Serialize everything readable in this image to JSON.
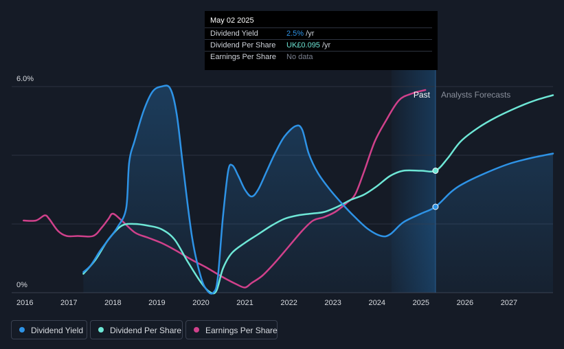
{
  "tooltip": {
    "date": "May 02 2025",
    "rows": [
      {
        "label": "Dividend Yield",
        "value": "2.5%",
        "unit": " /yr",
        "color": "#2e93e6"
      },
      {
        "label": "Dividend Per Share",
        "value": "UK£0.095",
        "unit": " /yr",
        "color": "#6ee7d6"
      },
      {
        "label": "Earnings Per Share",
        "value": "No data",
        "unit": "",
        "color": "#7b8190"
      }
    ]
  },
  "chart_data": {
    "type": "line",
    "y_axis_labels": {
      "top": "6.0%",
      "bottom": "0%"
    },
    "ylim": [
      0,
      6.0
    ],
    "xlim": [
      2015.7,
      2028.0
    ],
    "x_ticks": [
      "2016",
      "2017",
      "2018",
      "2019",
      "2020",
      "2021",
      "2022",
      "2023",
      "2024",
      "2025",
      "2026",
      "2027"
    ],
    "x_tick_values": [
      2016,
      2017,
      2018,
      2019,
      2020,
      2021,
      2022,
      2023,
      2024,
      2025,
      2026,
      2027
    ],
    "past_label": "Past",
    "forecast_label": "Analysts Forecasts",
    "present": 2025.33,
    "past_shade_start": 2024.33,
    "grid": true,
    "legend_position": "bottom-left",
    "series": [
      {
        "name": "Dividend Yield",
        "color": "#2e93e6",
        "area": true,
        "points": [
          [
            2017.33,
            0.6
          ],
          [
            2017.5,
            0.8
          ],
          [
            2017.7,
            1.2
          ],
          [
            2017.9,
            1.55
          ],
          [
            2018.1,
            1.9
          ],
          [
            2018.3,
            2.45
          ],
          [
            2018.37,
            3.8
          ],
          [
            2018.5,
            4.45
          ],
          [
            2018.7,
            5.3
          ],
          [
            2018.9,
            5.85
          ],
          [
            2019.1,
            6.0
          ],
          [
            2019.3,
            5.95
          ],
          [
            2019.45,
            5.2
          ],
          [
            2019.6,
            3.6
          ],
          [
            2019.8,
            1.6
          ],
          [
            2020.0,
            0.45
          ],
          [
            2020.15,
            0.05
          ],
          [
            2020.28,
            0.0
          ],
          [
            2020.38,
            0.4
          ],
          [
            2020.5,
            2.2
          ],
          [
            2020.62,
            3.55
          ],
          [
            2020.72,
            3.7
          ],
          [
            2020.85,
            3.4
          ],
          [
            2021.0,
            3.0
          ],
          [
            2021.15,
            2.8
          ],
          [
            2021.3,
            3.0
          ],
          [
            2021.5,
            3.55
          ],
          [
            2021.7,
            4.1
          ],
          [
            2021.9,
            4.55
          ],
          [
            2022.15,
            4.85
          ],
          [
            2022.3,
            4.75
          ],
          [
            2022.45,
            4.05
          ],
          [
            2022.65,
            3.5
          ],
          [
            2022.9,
            3.05
          ],
          [
            2023.2,
            2.6
          ],
          [
            2023.5,
            2.2
          ],
          [
            2023.8,
            1.85
          ],
          [
            2024.1,
            1.65
          ],
          [
            2024.3,
            1.7
          ],
          [
            2024.6,
            2.05
          ],
          [
            2025.0,
            2.3
          ],
          [
            2025.33,
            2.5
          ],
          [
            2025.7,
            2.95
          ],
          [
            2026.0,
            3.2
          ],
          [
            2026.5,
            3.5
          ],
          [
            2027.0,
            3.75
          ],
          [
            2027.5,
            3.92
          ],
          [
            2028.0,
            4.05
          ]
        ],
        "present_value": 2.5
      },
      {
        "name": "Dividend Per Share",
        "color": "#6ee7d6",
        "area": false,
        "points": [
          [
            2017.33,
            0.55
          ],
          [
            2017.6,
            0.95
          ],
          [
            2017.9,
            1.55
          ],
          [
            2018.2,
            1.95
          ],
          [
            2018.5,
            2.0
          ],
          [
            2018.8,
            1.95
          ],
          [
            2019.1,
            1.85
          ],
          [
            2019.4,
            1.55
          ],
          [
            2019.7,
            0.9
          ],
          [
            2020.0,
            0.3
          ],
          [
            2020.2,
            0.02
          ],
          [
            2020.35,
            0.05
          ],
          [
            2020.5,
            0.7
          ],
          [
            2020.7,
            1.15
          ],
          [
            2021.0,
            1.45
          ],
          [
            2021.3,
            1.7
          ],
          [
            2021.6,
            1.95
          ],
          [
            2021.9,
            2.15
          ],
          [
            2022.2,
            2.25
          ],
          [
            2022.5,
            2.3
          ],
          [
            2022.8,
            2.35
          ],
          [
            2023.1,
            2.5
          ],
          [
            2023.4,
            2.7
          ],
          [
            2023.7,
            2.85
          ],
          [
            2024.0,
            3.1
          ],
          [
            2024.3,
            3.4
          ],
          [
            2024.6,
            3.55
          ],
          [
            2025.0,
            3.55
          ],
          [
            2025.33,
            3.55
          ],
          [
            2025.6,
            3.9
          ],
          [
            2025.9,
            4.4
          ],
          [
            2026.3,
            4.8
          ],
          [
            2026.7,
            5.1
          ],
          [
            2027.2,
            5.4
          ],
          [
            2027.6,
            5.6
          ],
          [
            2028.0,
            5.75
          ]
        ],
        "present_value": 3.55
      },
      {
        "name": "Earnings Per Share",
        "color": "#d0418b",
        "area": false,
        "points": [
          [
            2015.97,
            2.1
          ],
          [
            2016.25,
            2.1
          ],
          [
            2016.45,
            2.25
          ],
          [
            2016.55,
            2.15
          ],
          [
            2016.75,
            1.8
          ],
          [
            2016.95,
            1.65
          ],
          [
            2017.2,
            1.65
          ],
          [
            2017.55,
            1.65
          ],
          [
            2017.75,
            1.9
          ],
          [
            2017.9,
            2.15
          ],
          [
            2018.0,
            2.3
          ],
          [
            2018.2,
            2.1
          ],
          [
            2018.5,
            1.75
          ],
          [
            2018.8,
            1.6
          ],
          [
            2019.1,
            1.45
          ],
          [
            2019.4,
            1.25
          ],
          [
            2019.8,
            0.95
          ],
          [
            2020.1,
            0.75
          ],
          [
            2020.5,
            0.45
          ],
          [
            2020.8,
            0.25
          ],
          [
            2021.0,
            0.15
          ],
          [
            2021.15,
            0.28
          ],
          [
            2021.4,
            0.5
          ],
          [
            2021.7,
            0.9
          ],
          [
            2022.0,
            1.35
          ],
          [
            2022.3,
            1.8
          ],
          [
            2022.55,
            2.1
          ],
          [
            2022.8,
            2.2
          ],
          [
            2023.05,
            2.35
          ],
          [
            2023.3,
            2.6
          ],
          [
            2023.5,
            2.85
          ],
          [
            2023.7,
            3.5
          ],
          [
            2023.95,
            4.4
          ],
          [
            2024.2,
            5.0
          ],
          [
            2024.5,
            5.6
          ],
          [
            2024.8,
            5.8
          ],
          [
            2025.1,
            5.9
          ]
        ]
      }
    ]
  },
  "legend": [
    {
      "label": "Dividend Yield",
      "color": "#2e93e6"
    },
    {
      "label": "Dividend Per Share",
      "color": "#6ee7d6"
    },
    {
      "label": "Earnings Per Share",
      "color": "#d0418b"
    }
  ]
}
